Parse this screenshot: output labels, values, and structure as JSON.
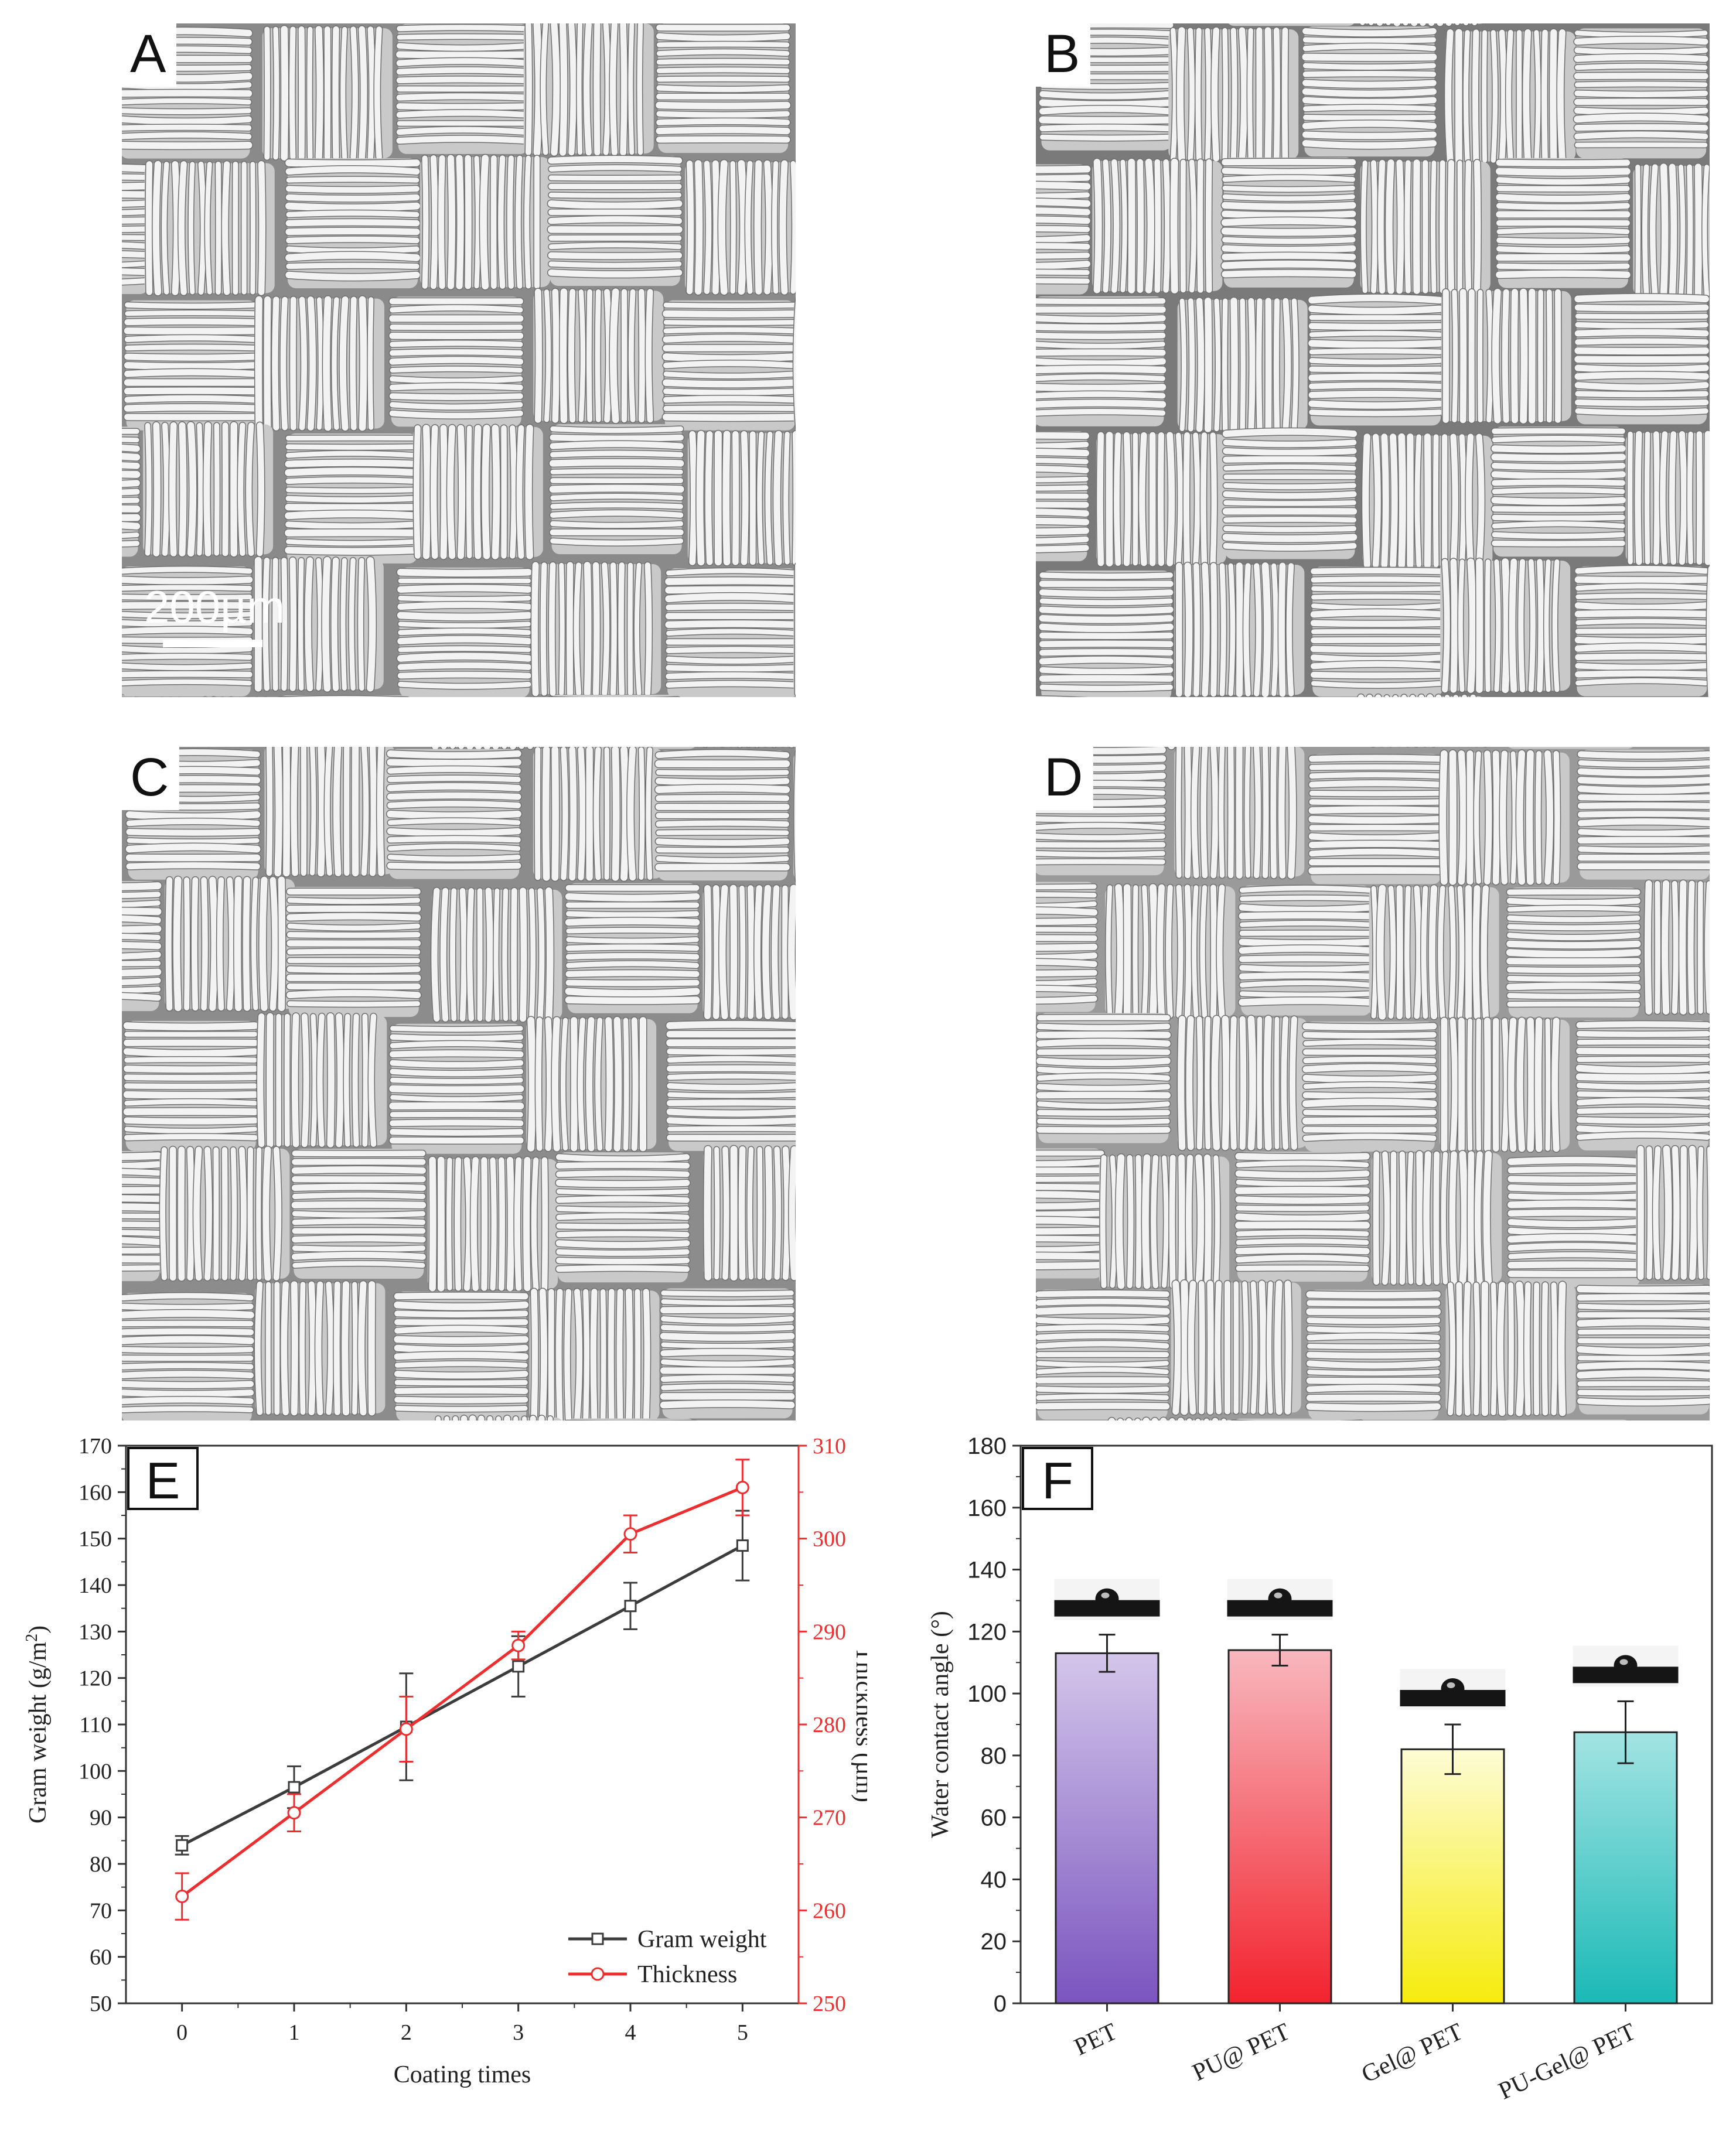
{
  "panels": {
    "A": {
      "label": "A",
      "scalebar": "200µm"
    },
    "B": {
      "label": "B"
    },
    "C": {
      "label": "C"
    },
    "D": {
      "label": "D"
    }
  },
  "chart_data": [
    {
      "panel": "E",
      "type": "line",
      "x": [
        0,
        1,
        2,
        3,
        4,
        5
      ],
      "xlabel": "Coating times",
      "ylabel": "Gram weight (g/m2)",
      "ylabel_right": "Thickness (µm)",
      "ylim": [
        50,
        170
      ],
      "ylim_right": [
        250,
        310
      ],
      "series": [
        {
          "name": "Gram weight",
          "axis": "left",
          "color": "#3c3c3c",
          "values": [
            84,
            96.5,
            109.5,
            122.5,
            135.5,
            148.5
          ],
          "errors": [
            2,
            4.5,
            11.5,
            6.5,
            5,
            7.5
          ]
        },
        {
          "name": "Thickness",
          "axis": "right",
          "color": "#ee2e2e",
          "values": [
            261.5,
            270.5,
            279.5,
            288.5,
            300.5,
            305.5
          ],
          "errors": [
            2.5,
            2,
            3.5,
            1.5,
            2,
            3
          ]
        }
      ],
      "legend": "bottom-right",
      "grid": false
    },
    {
      "panel": "F",
      "type": "bar",
      "categories": [
        "PET",
        "PU@ PET",
        "Gel@ PET",
        "PU-Gel@ PET"
      ],
      "values": [
        113,
        114,
        82,
        87.5
      ],
      "errors": [
        6,
        5,
        8,
        10
      ],
      "colors_top": [
        "#d4c6ea",
        "#f8b7be",
        "#fdfcd5",
        "#a3e4e3"
      ],
      "colors_bottom": [
        "#7a55bf",
        "#f2232e",
        "#f6ec0c",
        "#1bb9b6"
      ],
      "ylabel": "Water contact angle (°)",
      "ylim": [
        0,
        180
      ],
      "yticks": [
        0,
        20,
        40,
        60,
        80,
        100,
        120,
        140,
        160,
        180
      ],
      "grid": false
    }
  ]
}
